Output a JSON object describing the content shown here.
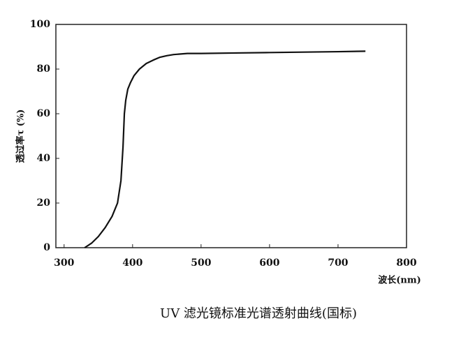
{
  "chart_data": {
    "type": "line",
    "title": "UV 滤光镜标准光谱透射曲线(国标)",
    "x_label": "波长(nm)",
    "y_label": "透过率τ (%)",
    "x": [
      330,
      340,
      350,
      360,
      370,
      378,
      383,
      386,
      388,
      390,
      393,
      397,
      402,
      410,
      420,
      430,
      440,
      450,
      460,
      480,
      500,
      550,
      600,
      650,
      700,
      740
    ],
    "series": [
      {
        "name": "UV",
        "color": "#111111",
        "values": [
          0,
          2,
          5,
          9,
          14,
          20,
          30,
          45,
          60,
          66,
          71,
          74,
          77,
          80,
          82.5,
          84,
          85.3,
          86,
          86.5,
          87,
          87,
          87.2,
          87.4,
          87.6,
          87.8,
          88
        ]
      }
    ],
    "xlim": [
      288,
      800
    ],
    "xticks": [
      300,
      400,
      500,
      600,
      700,
      800
    ],
    "ylim": [
      0,
      100
    ],
    "yticks": [
      0,
      20,
      40,
      60,
      80,
      100
    ]
  }
}
